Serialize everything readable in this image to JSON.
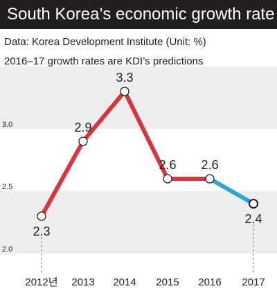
{
  "header": {
    "title": "South Korea’s economic growth rate",
    "source": "Data: Korea Development Institute (Unit: %)",
    "note": "2016–17 growth rates are KDI’s predictions"
  },
  "chart_data": {
    "type": "line",
    "title": "South Korea’s economic growth rate",
    "xlabel": "",
    "ylabel": "",
    "unit": "%",
    "categories": [
      "2012년",
      "2013",
      "2014",
      "2015",
      "2016",
      "2017"
    ],
    "values": [
      2.3,
      2.9,
      3.3,
      2.6,
      2.6,
      2.4
    ],
    "value_labels": [
      "2.3",
      "2.9",
      "3.3",
      "2.6",
      "2.6",
      "2.4"
    ],
    "ylim": [
      2.0,
      3.5
    ],
    "yticks": [
      2.0,
      2.5,
      3.0
    ],
    "ytick_labels": [
      "2.0",
      "2.5",
      "3.0"
    ],
    "actual_color": "#d9343a",
    "forecast_color": "#2ba5d6",
    "forecast_from_index": 4,
    "grid": "alternating horizontal bands",
    "legend": "none"
  }
}
